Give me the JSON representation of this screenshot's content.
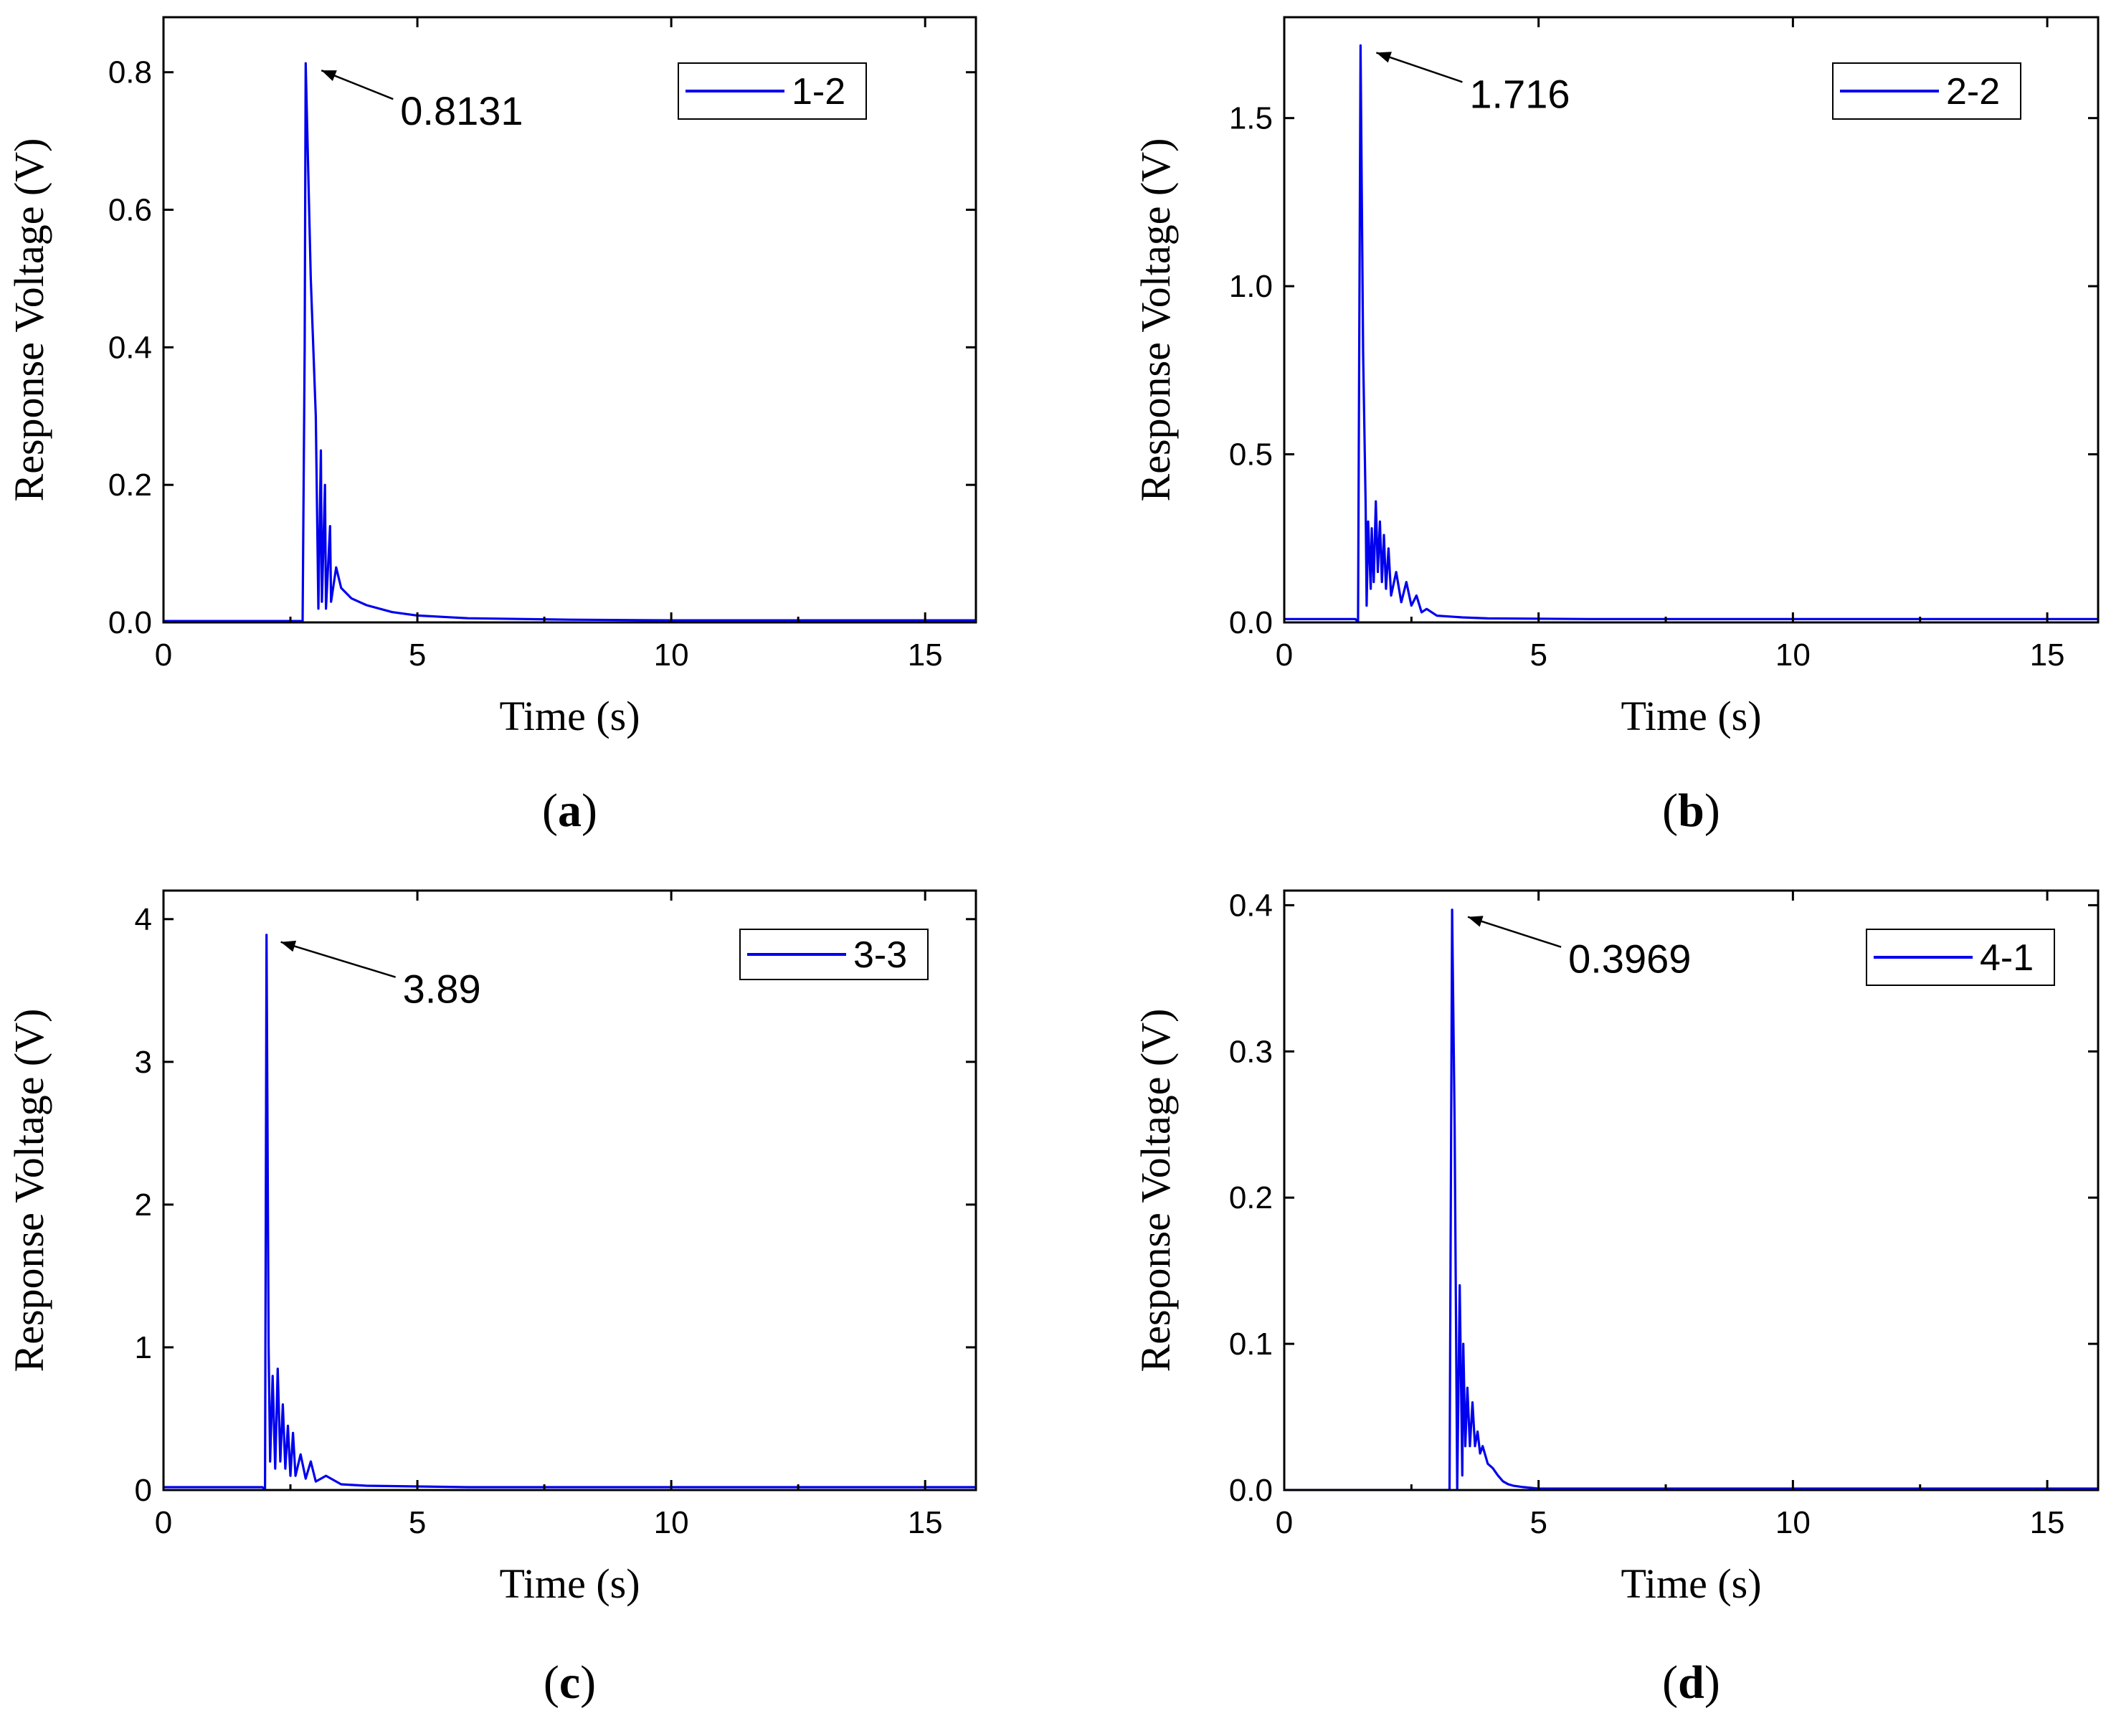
{
  "chart_data": [
    {
      "type": "line",
      "panel_label": "a",
      "xlabel": "Time (s)",
      "ylabel": "Response Voltage (V)",
      "xlim": [
        0,
        16
      ],
      "ylim": [
        0,
        0.88
      ],
      "xticks": [
        0,
        5,
        10,
        15
      ],
      "xtick_labels": [
        "0",
        "5",
        "10",
        "15"
      ],
      "yticks": [
        0.0,
        0.2,
        0.4,
        0.6,
        0.8
      ],
      "ytick_labels": [
        "0.0",
        "0.2",
        "0.4",
        "0.6",
        "0.8"
      ],
      "legend_position": "top-right",
      "series": [
        {
          "name": "1-2",
          "color": "#0000ee",
          "x": [
            0,
            2.7,
            2.74,
            2.78,
            2.8,
            2.9,
            3.0,
            3.05,
            3.1,
            3.12,
            3.18,
            3.2,
            3.28,
            3.3,
            3.4,
            3.5,
            3.7,
            4.0,
            4.5,
            5,
            6,
            7,
            8,
            10,
            12,
            14,
            16
          ],
          "y": [
            0.002,
            0.002,
            0.0,
            0.4,
            0.8131,
            0.5,
            0.3,
            0.02,
            0.25,
            0.03,
            0.2,
            0.02,
            0.14,
            0.03,
            0.08,
            0.05,
            0.035,
            0.025,
            0.015,
            0.01,
            0.006,
            0.005,
            0.004,
            0.003,
            0.003,
            0.003,
            0.003
          ]
        }
      ],
      "annotation": {
        "text": "0.8131",
        "x": 2.8,
        "y": 0.8131
      }
    },
    {
      "type": "line",
      "panel_label": "b",
      "xlabel": "Time (s)",
      "ylabel": "Response Voltage (V)",
      "xlim": [
        0,
        16
      ],
      "ylim": [
        0,
        1.8
      ],
      "xticks": [
        0,
        5,
        10,
        15
      ],
      "xtick_labels": [
        "0",
        "5",
        "10",
        "15"
      ],
      "yticks": [
        0.0,
        0.5,
        1.0,
        1.5
      ],
      "ytick_labels": [
        "0.0",
        "0.5",
        "1.0",
        "1.5"
      ],
      "legend_position": "top-right",
      "series": [
        {
          "name": "2-2",
          "color": "#0000ee",
          "x": [
            0,
            1.4,
            1.45,
            1.5,
            1.55,
            1.6,
            1.62,
            1.65,
            1.7,
            1.72,
            1.76,
            1.8,
            1.84,
            1.88,
            1.92,
            1.96,
            2.0,
            2.05,
            2.1,
            2.2,
            2.3,
            2.4,
            2.5,
            2.6,
            2.7,
            2.8,
            3.0,
            3.5,
            4,
            6,
            8,
            10,
            12,
            14,
            16
          ],
          "y": [
            0.01,
            0.01,
            0.0,
            1.716,
            0.8,
            0.35,
            0.05,
            0.3,
            0.1,
            0.28,
            0.12,
            0.36,
            0.15,
            0.3,
            0.12,
            0.26,
            0.1,
            0.22,
            0.08,
            0.15,
            0.06,
            0.12,
            0.05,
            0.08,
            0.03,
            0.04,
            0.02,
            0.015,
            0.012,
            0.01,
            0.01,
            0.01,
            0.01,
            0.01,
            0.01
          ]
        }
      ],
      "annotation": {
        "text": "1.716",
        "x": 1.5,
        "y": 1.716
      }
    },
    {
      "type": "line",
      "panel_label": "c",
      "xlabel": "Time (s)",
      "ylabel": "Response Voltage (V)",
      "xlim": [
        0,
        16
      ],
      "ylim": [
        0,
        4.2
      ],
      "xticks": [
        0,
        5,
        10,
        15
      ],
      "xtick_labels": [
        "0",
        "5",
        "10",
        "15"
      ],
      "yticks": [
        0,
        1,
        2,
        3,
        4
      ],
      "ytick_labels": [
        "0",
        "1",
        "2",
        "3",
        "4"
      ],
      "legend_position": "top-right",
      "series": [
        {
          "name": "3-3",
          "color": "#0000ee",
          "x": [
            0,
            1.95,
            2.0,
            2.03,
            2.07,
            2.1,
            2.15,
            2.2,
            2.25,
            2.3,
            2.35,
            2.4,
            2.45,
            2.5,
            2.55,
            2.6,
            2.7,
            2.8,
            2.9,
            3.0,
            3.2,
            3.5,
            4,
            6,
            8,
            10,
            12,
            14,
            16
          ],
          "y": [
            0.02,
            0.02,
            0.0,
            3.89,
            1.0,
            0.2,
            0.8,
            0.15,
            0.85,
            0.2,
            0.6,
            0.15,
            0.45,
            0.1,
            0.4,
            0.1,
            0.25,
            0.08,
            0.2,
            0.06,
            0.1,
            0.04,
            0.03,
            0.02,
            0.02,
            0.02,
            0.02,
            0.02,
            0.02
          ]
        }
      ],
      "annotation": {
        "text": "3.89",
        "x": 2.0,
        "y": 3.89
      }
    },
    {
      "type": "line",
      "panel_label": "d",
      "xlabel": "Time (s)",
      "ylabel": "Response Voltage (V)",
      "xlim": [
        0,
        16
      ],
      "ylim": [
        0,
        0.41
      ],
      "xticks": [
        0,
        5,
        10,
        15
      ],
      "xtick_labels": [
        "0",
        "5",
        "10",
        "15"
      ],
      "yticks": [
        0.0,
        0.1,
        0.2,
        0.3,
        0.4
      ],
      "ytick_labels": [
        "0.0",
        "0.1",
        "0.2",
        "0.3",
        "0.4"
      ],
      "legend_position": "top-right",
      "series": [
        {
          "name": "4-1",
          "color": "#0000ee",
          "x": [
            0,
            3.25,
            3.3,
            3.35,
            3.4,
            3.45,
            3.5,
            3.52,
            3.56,
            3.6,
            3.65,
            3.7,
            3.75,
            3.8,
            3.85,
            3.9,
            4.0,
            4.1,
            4.2,
            4.3,
            4.4,
            4.5,
            4.7,
            5,
            6,
            8,
            10,
            12,
            14,
            16
          ],
          "y": [
            0.0,
            0.0,
            0.3969,
            0.25,
            0.0,
            0.14,
            0.01,
            0.1,
            0.03,
            0.07,
            0.03,
            0.06,
            0.03,
            0.04,
            0.025,
            0.03,
            0.018,
            0.015,
            0.01,
            0.006,
            0.004,
            0.003,
            0.002,
            0.001,
            0.001,
            0.001,
            0.001,
            0.001,
            0.001,
            0.001
          ]
        }
      ],
      "annotation": {
        "text": "0.3969",
        "x": 3.3,
        "y": 0.3969
      }
    }
  ]
}
